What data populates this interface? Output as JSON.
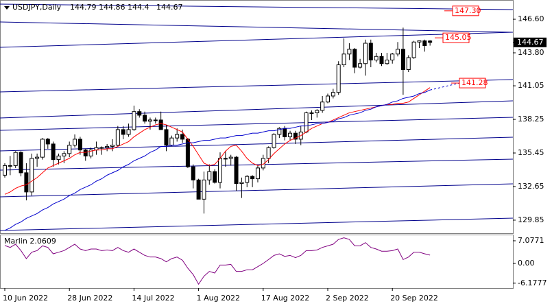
{
  "chart_data": [
    {
      "type": "candlestick",
      "title": "USDJPY,Daily",
      "categories": [
        "10 Jun 2022",
        null,
        null,
        null,
        null,
        null,
        null,
        null,
        null,
        null,
        null,
        null,
        "28 Jun 2022",
        null,
        null,
        null,
        null,
        null,
        null,
        null,
        null,
        null,
        null,
        null,
        "14 Jul 2022",
        null,
        null,
        null,
        null,
        null,
        null,
        null,
        null,
        null,
        null,
        null,
        "1 Aug 2022",
        null,
        null,
        null,
        null,
        null,
        null,
        null,
        null,
        null,
        null,
        null,
        "17 Aug 2022",
        null,
        null,
        null,
        null,
        null,
        null,
        null,
        null,
        null,
        null,
        null,
        "2 Sep 2022",
        null,
        null,
        null,
        null,
        null,
        null,
        null,
        null,
        null,
        null,
        null,
        "20 Sep 2022",
        null,
        null,
        null,
        null,
        null,
        null,
        null
      ],
      "open": [
        133.6,
        134.4,
        134.4,
        135.5,
        133.8,
        132.2,
        135.0,
        135.1,
        136.6,
        136.2,
        134.9,
        135.2,
        135.4,
        136.1,
        136.6,
        135.7,
        135.2,
        135.7,
        135.9,
        135.9,
        136.0,
        136.1,
        137.4,
        137.0,
        137.4,
        138.9,
        138.6,
        138.1,
        138.2,
        138.2,
        137.4,
        136.1,
        136.7,
        137.0,
        136.6,
        134.3,
        133.2,
        131.6,
        133.2,
        133.9,
        133.0,
        135.0,
        135.0,
        135.1,
        132.9,
        133.0,
        133.5,
        133.3,
        134.2,
        135.0,
        135.9,
        137.0,
        137.5,
        136.8,
        137.1,
        136.6,
        137.2,
        138.8,
        138.8,
        139.0,
        139.7,
        140.2,
        140.5,
        142.8,
        143.7,
        144.1,
        142.6,
        142.9,
        144.6,
        143.2,
        143.5,
        142.9,
        143.2,
        143.7,
        144.1,
        142.4,
        143.4,
        144.7,
        144.8,
        144.79
      ],
      "high": [
        134.6,
        135.2,
        135.6,
        135.6,
        134.6,
        135.4,
        135.4,
        136.7,
        136.7,
        136.4,
        135.4,
        135.6,
        136.4,
        137.0,
        136.8,
        135.8,
        135.9,
        136.4,
        136.0,
        136.2,
        136.6,
        137.7,
        137.7,
        137.9,
        139.4,
        139.1,
        138.9,
        138.4,
        138.4,
        138.9,
        137.8,
        136.9,
        137.5,
        137.4,
        136.7,
        134.5,
        133.3,
        133.9,
        134.5,
        134.1,
        135.5,
        135.6,
        135.3,
        135.2,
        133.4,
        133.6,
        133.6,
        134.4,
        135.3,
        136.0,
        137.1,
        137.6,
        137.7,
        137.3,
        137.3,
        137.7,
        138.9,
        139.0,
        139.1,
        140.2,
        140.4,
        140.8,
        143.1,
        145.0,
        144.6,
        144.2,
        143.3,
        144.9,
        144.9,
        143.8,
        143.8,
        143.8,
        143.8,
        144.7,
        145.9,
        143.6,
        144.8,
        144.8,
        144.9,
        144.86
      ],
      "low": [
        133.4,
        133.6,
        134.2,
        133.5,
        131.5,
        131.9,
        134.3,
        134.9,
        135.8,
        134.3,
        134.5,
        134.6,
        135.1,
        135.9,
        135.3,
        134.8,
        135.0,
        135.3,
        135.3,
        135.6,
        135.6,
        136.0,
        136.6,
        136.8,
        137.3,
        138.4,
        137.9,
        137.4,
        137.9,
        137.4,
        135.6,
        136.0,
        136.4,
        136.3,
        134.2,
        132.5,
        131.6,
        130.4,
        132.8,
        132.9,
        132.5,
        134.3,
        134.4,
        132.3,
        131.7,
        132.6,
        132.6,
        133.0,
        134.0,
        134.6,
        135.8,
        136.7,
        136.5,
        136.5,
        136.2,
        136.1,
        137.1,
        138.2,
        138.4,
        138.8,
        139.6,
        140.0,
        140.3,
        142.6,
        143.2,
        142.1,
        142.5,
        141.9,
        142.6,
        143.0,
        142.7,
        142.8,
        142.9,
        143.5,
        140.3,
        142.2,
        143.3,
        144.2,
        143.9,
        144.4
      ],
      "close": [
        134.4,
        134.4,
        135.5,
        133.8,
        132.2,
        135.0,
        135.1,
        136.6,
        136.2,
        134.9,
        135.2,
        135.4,
        136.1,
        136.6,
        135.7,
        135.2,
        135.7,
        135.9,
        135.9,
        136.0,
        136.1,
        137.4,
        137.0,
        137.4,
        138.9,
        138.6,
        138.1,
        138.2,
        138.2,
        137.4,
        136.1,
        136.7,
        137.0,
        136.6,
        134.3,
        133.2,
        131.6,
        133.2,
        133.9,
        133.0,
        135.0,
        135.0,
        135.1,
        132.9,
        133.0,
        133.5,
        133.3,
        134.2,
        135.0,
        135.9,
        137.0,
        137.5,
        136.8,
        137.1,
        136.6,
        137.2,
        138.8,
        138.8,
        139.0,
        139.7,
        140.2,
        140.5,
        142.8,
        143.7,
        144.1,
        142.6,
        142.9,
        144.6,
        143.2,
        143.5,
        142.9,
        143.2,
        143.7,
        144.1,
        142.4,
        143.4,
        144.7,
        144.8,
        144.4,
        144.67
      ],
      "overlays": [
        {
          "color": "#ff0000",
          "values": [
            132.0,
            132.2,
            132.5,
            132.7,
            132.8,
            133.1,
            133.4,
            133.8,
            134.2,
            134.4,
            134.6,
            134.8,
            135.0,
            135.3,
            135.5,
            135.5,
            135.6,
            135.7,
            135.7,
            135.8,
            135.8,
            136.0,
            136.2,
            136.4,
            136.8,
            137.1,
            137.4,
            137.6,
            137.8,
            137.9,
            137.8,
            137.6,
            137.4,
            137.2,
            136.6,
            136.0,
            135.3,
            134.6,
            134.4,
            134.5,
            135.0,
            135.6,
            136.0,
            136.1,
            135.6,
            135.0,
            134.6,
            134.4,
            134.5,
            134.9,
            135.4,
            135.8,
            136.2,
            136.5,
            136.7,
            136.9,
            137.2,
            137.5,
            137.7,
            137.9,
            138.0,
            138.2,
            138.4,
            138.6,
            138.8,
            138.9,
            139.0,
            139.1,
            139.2,
            139.3,
            139.4,
            139.5,
            139.5,
            139.6,
            139.6,
            139.7,
            140.0,
            140.3,
            140.6,
            140.9
          ]
        },
        {
          "color": "#0000cd",
          "values": [
            129.0,
            129.2,
            129.5,
            129.7,
            130.0,
            130.2,
            130.4,
            130.7,
            130.9,
            131.2,
            131.4,
            131.6,
            131.9,
            132.1,
            132.4,
            132.6,
            132.8,
            133.1,
            133.3,
            133.6,
            133.8,
            134.0,
            134.3,
            134.5,
            134.8,
            135.0,
            135.2,
            135.5,
            135.7,
            136.0,
            136.0,
            136.1,
            136.1,
            136.2,
            136.3,
            136.3,
            136.4,
            136.5,
            136.5,
            136.6,
            136.7,
            136.7,
            136.8,
            136.9,
            136.9,
            137.0,
            137.1,
            137.1,
            137.2,
            137.3,
            137.3,
            137.4,
            137.5,
            137.5,
            137.6,
            137.7,
            137.7,
            137.8,
            137.9,
            137.9,
            138.0,
            138.1,
            138.3,
            138.4,
            138.6,
            138.7,
            138.8,
            139.0,
            139.1,
            139.3,
            139.4,
            139.5,
            139.7,
            139.8,
            140.0,
            140.1,
            140.2,
            140.4,
            140.5,
            140.7
          ]
        }
      ],
      "price_labels": [
        {
          "value": 147.3,
          "label": "147.30"
        },
        {
          "value": 145.05,
          "label": "145.05"
        },
        {
          "value": 141.28,
          "label": "141.28"
        }
      ],
      "ylim": [
        128.76,
        148.09
      ],
      "yticks": [
        {
          "value": 146.6,
          "label": "146.60"
        },
        {
          "value": 143.8,
          "label": "143.80"
        },
        141.05,
        138.25,
        135.45,
        132.65,
        129.85
      ]
    },
    {
      "type": "line",
      "title": "Marlin 2.0609",
      "color": "#800080",
      "values": [
        5.6,
        5.0,
        6.0,
        4.0,
        1.5,
        3.5,
        4.0,
        5.5,
        5.0,
        3.0,
        3.5,
        4.0,
        5.0,
        6.0,
        4.5,
        4.0,
        4.5,
        4.5,
        4.0,
        4.2,
        4.0,
        5.0,
        4.0,
        3.5,
        4.5,
        3.5,
        2.5,
        2.0,
        2.0,
        1.5,
        0.5,
        1.5,
        2.0,
        1.0,
        -1.5,
        -3.5,
        -6.5,
        -4.0,
        -2.5,
        -3.0,
        -0.5,
        -0.5,
        -0.3,
        -2.5,
        -2.5,
        -2.0,
        -2.0,
        -1.0,
        0.0,
        1.2,
        2.5,
        3.0,
        2.2,
        2.5,
        1.8,
        2.5,
        4.0,
        4.0,
        4.2,
        5.0,
        5.5,
        6.0,
        7.5,
        8.0,
        7.5,
        5.5,
        5.5,
        6.5,
        5.0,
        4.5,
        3.8,
        3.8,
        4.0,
        4.5,
        1.2,
        2.0,
        3.5,
        3.5,
        3.0,
        2.6
      ],
      "ylim": [
        -7.72,
        8.79
      ],
      "yticks": [
        7.0771,
        {
          "value": 0,
          "label": "0.00"
        },
        -6.1777
      ]
    }
  ]
}
